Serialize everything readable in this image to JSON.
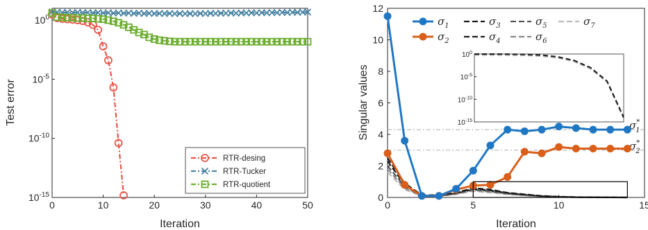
{
  "chart_data": [
    {
      "type": "line",
      "xlabel": "Iteration",
      "ylabel": "Test error",
      "xlim": [
        0,
        50
      ],
      "ylim": [
        1e-15,
        10
      ],
      "yscale": "log",
      "xticks": [
        "0",
        "10",
        "20",
        "30",
        "40",
        "50"
      ],
      "yticks": [
        {
          "base": "10",
          "exp": "0"
        },
        {
          "base": "10",
          "exp": "-5"
        },
        {
          "base": "10",
          "exp": "-10"
        },
        {
          "base": "10",
          "exp": "-15"
        }
      ],
      "legend_position": "bottom-right",
      "series": [
        {
          "name": "RTR-desing",
          "color": "#e8574b",
          "marker": "circle",
          "x": [
            0,
            1,
            2,
            3,
            4,
            5,
            6,
            7,
            8,
            9,
            10,
            11,
            12,
            13,
            14
          ],
          "y": [
            3,
            1.5,
            1.3,
            1.2,
            1.1,
            1.0,
            0.85,
            0.65,
            0.4,
            0.15,
            0.006,
            0.0004,
            2e-06,
            4e-11,
            1.5e-15
          ]
        },
        {
          "name": "RTR-Tucker",
          "color": "#4c85a3",
          "marker": "x",
          "x": [
            0,
            1,
            2,
            3,
            4,
            5,
            6,
            7,
            8,
            9,
            10,
            11,
            12,
            13,
            14,
            15,
            16,
            17,
            18,
            19,
            20,
            21,
            22,
            23,
            24,
            25,
            26,
            27,
            28,
            29,
            30,
            31,
            32,
            33,
            34,
            35,
            36,
            37,
            38,
            39,
            40,
            41,
            42,
            43,
            44,
            45,
            46,
            47,
            48,
            49,
            50
          ],
          "y": [
            5,
            4.6,
            4.4,
            4.5,
            4.3,
            4.5,
            4.2,
            4.4,
            4.1,
            4.3,
            4.0,
            4.2,
            3.9,
            4.1,
            3.8,
            4.0,
            3.7,
            3.9,
            3.6,
            3.8,
            3.6,
            3.7,
            3.6,
            3.7,
            3.5,
            3.6,
            3.5,
            3.6,
            3.5,
            3.7,
            3.6,
            3.8,
            3.7,
            3.9,
            3.8,
            4.0,
            3.9,
            4.1,
            4.0,
            4.2,
            4.1,
            4.3,
            4.2,
            4.4,
            4.3,
            4.5,
            4.4,
            4.6,
            4.5,
            4.7,
            4.8
          ]
        },
        {
          "name": "RTR-quotient",
          "color": "#6cad2f",
          "marker": "square",
          "x": [
            0,
            1,
            2,
            3,
            4,
            5,
            6,
            7,
            8,
            9,
            10,
            11,
            12,
            13,
            14,
            15,
            16,
            17,
            18,
            19,
            20,
            21,
            22,
            23,
            24,
            25,
            26,
            27,
            28,
            29,
            30,
            31,
            32,
            33,
            34,
            35,
            36,
            37,
            38,
            39,
            40,
            41,
            42,
            43,
            44,
            45,
            46,
            47,
            48,
            49,
            50
          ],
          "y": [
            4,
            1.8,
            1.7,
            1.6,
            1.6,
            1.5,
            1.5,
            1.4,
            1.4,
            1.3,
            1.2,
            1.0,
            0.8,
            0.6,
            0.4,
            0.25,
            0.15,
            0.09,
            0.06,
            0.035,
            0.025,
            0.02,
            0.018,
            0.016,
            0.015,
            0.015,
            0.015,
            0.015,
            0.015,
            0.015,
            0.015,
            0.015,
            0.015,
            0.015,
            0.015,
            0.015,
            0.015,
            0.015,
            0.015,
            0.015,
            0.015,
            0.015,
            0.015,
            0.015,
            0.015,
            0.015,
            0.015,
            0.015,
            0.015,
            0.015,
            0.015
          ]
        }
      ]
    },
    {
      "type": "line",
      "xlabel": "Iteration",
      "ylabel": "Singular values",
      "xlim": [
        0,
        15
      ],
      "ylim": [
        0,
        12
      ],
      "xticks": [
        "0",
        "5",
        "10",
        "15"
      ],
      "yticks": [
        "0",
        "2",
        "4",
        "6",
        "8",
        "10",
        "12"
      ],
      "legend_position": "top",
      "reference_lines": [
        {
          "label_base": "σ",
          "label_sub": "1",
          "label_sup": "*",
          "y": 4.3,
          "color": "#1f77c4"
        },
        {
          "label_base": "σ",
          "label_sub": "2",
          "label_sup": "*",
          "y": 3.0,
          "color": "#d95f1a"
        }
      ],
      "zoom_box": {
        "x": [
          5,
          14
        ],
        "y": [
          0,
          1
        ]
      },
      "series": [
        {
          "name_base": "σ",
          "name_sub": "1",
          "color": "#1f77c4",
          "style": "solid",
          "marker": "circle",
          "x": [
            0,
            1,
            2,
            3,
            4,
            5,
            6,
            7,
            8,
            9,
            10,
            11,
            12,
            13,
            14
          ],
          "y": [
            11.5,
            3.6,
            0.1,
            0.1,
            0.55,
            1.7,
            3.3,
            4.3,
            4.2,
            4.3,
            4.5,
            4.4,
            4.3,
            4.3,
            4.3
          ]
        },
        {
          "name_base": "σ",
          "name_sub": "2",
          "color": "#d95f1a",
          "style": "solid",
          "marker": "circle",
          "x": [
            0,
            1,
            2,
            3,
            4,
            5,
            6,
            7,
            8,
            9,
            10,
            11,
            12,
            13,
            14
          ],
          "y": [
            2.8,
            0.8,
            0.1,
            0.1,
            0.5,
            0.75,
            0.8,
            1.3,
            2.9,
            2.8,
            3.2,
            3.1,
            3.1,
            3.1,
            3.1
          ]
        },
        {
          "name_base": "σ",
          "name_sub": "3",
          "color": "#1a1a1a",
          "style": "dashed",
          "x": [
            0,
            1,
            2,
            3,
            4,
            5,
            6,
            7,
            8,
            9,
            10,
            11,
            12,
            13,
            14
          ],
          "y": [
            2.5,
            0.9,
            0.15,
            0.15,
            0.3,
            0.6,
            0.5,
            0.3,
            0.2,
            0.1,
            0.05,
            0.02,
            0.01,
            0.005,
            0.002
          ]
        },
        {
          "name_base": "σ",
          "name_sub": "4",
          "color": "#1a1a1a",
          "style": "dashed",
          "x": [
            0,
            1,
            2,
            3,
            4,
            5,
            6,
            7,
            8,
            9,
            10,
            11,
            12,
            13,
            14
          ],
          "y": [
            2.3,
            0.8,
            0.12,
            0.12,
            0.28,
            0.55,
            0.45,
            0.28,
            0.18,
            0.09,
            0.04,
            0.02,
            0.01,
            0.004,
            0.001
          ]
        },
        {
          "name_base": "σ",
          "name_sub": "5",
          "color": "#555555",
          "style": "dashed",
          "x": [
            0,
            1,
            2,
            3,
            4,
            5,
            6,
            7,
            8,
            9,
            10,
            11,
            12,
            13,
            14
          ],
          "y": [
            2.0,
            0.7,
            0.1,
            0.1,
            0.25,
            0.5,
            0.4,
            0.25,
            0.15,
            0.08,
            0.04,
            0.02,
            0.008,
            0.003,
            0.001
          ]
        },
        {
          "name_base": "σ",
          "name_sub": "6",
          "color": "#888888",
          "style": "dashed",
          "x": [
            0,
            1,
            2,
            3,
            4,
            5,
            6,
            7,
            8,
            9,
            10,
            11,
            12,
            13,
            14
          ],
          "y": [
            1.8,
            0.6,
            0.1,
            0.1,
            0.22,
            0.45,
            0.35,
            0.22,
            0.13,
            0.07,
            0.03,
            0.015,
            0.006,
            0.002,
            0.001
          ]
        },
        {
          "name_base": "σ",
          "name_sub": "7",
          "color": "#bbbbbb",
          "style": "dashed",
          "x": [
            0,
            1,
            2,
            3,
            4,
            5,
            6,
            7,
            8,
            9,
            10,
            11,
            12,
            13,
            14
          ],
          "y": [
            1.6,
            0.5,
            0.08,
            0.08,
            0.2,
            0.4,
            0.3,
            0.2,
            0.12,
            0.06,
            0.03,
            0.012,
            0.005,
            0.002,
            0.001
          ]
        }
      ],
      "inset": {
        "type": "line",
        "yscale": "log",
        "ylim": [
          1e-15,
          1
        ],
        "yticks": [
          {
            "base": "10",
            "exp": "0"
          },
          {
            "base": "10",
            "exp": "-5"
          },
          {
            "base": "10",
            "exp": "-10"
          },
          {
            "base": "10",
            "exp": "-15"
          }
        ],
        "x": [
          0,
          1,
          2,
          3,
          4,
          5,
          6,
          7,
          8,
          9
        ],
        "y": [
          1,
          1,
          0.95,
          0.85,
          0.6,
          0.25,
          0.04,
          0.001,
          1e-06,
          1e-14
        ]
      }
    }
  ]
}
